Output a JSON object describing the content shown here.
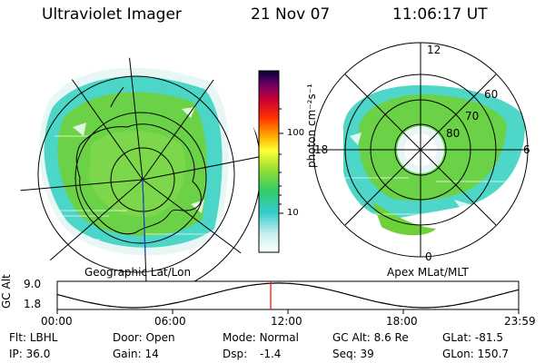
{
  "header": {
    "title": "Ultraviolet Imager",
    "date": "21 Nov 07",
    "time": "11:06:17 UT"
  },
  "colorbar": {
    "label": "photon cm⁻²s⁻¹",
    "ticks": [
      "100",
      "10"
    ]
  },
  "left_panel": {
    "caption": "Geographic Lat/Lon"
  },
  "right_panel": {
    "caption": "Apex MLat/MLT",
    "clock_labels": {
      "top": "12",
      "left": "18",
      "right": "6",
      "bottom": "0"
    },
    "lat_labels": [
      "60",
      "70",
      "80"
    ]
  },
  "timeline": {
    "ylabel": "GC Alt",
    "yticks": [
      "9.0",
      "1.8"
    ],
    "xticks": [
      "00:00",
      "06:00",
      "12:00",
      "18:00",
      "23:59"
    ],
    "marker_fraction": 0.4627
  },
  "info": {
    "flt_label": "Flt:",
    "flt_value": "LBHL",
    "ip_label": "IP:",
    "ip_value": "36.0",
    "door_label": "Door:",
    "door_value": "Open",
    "gain_label": "Gain:",
    "gain_value": "14",
    "mode_label": "Mode:",
    "mode_value": "Normal",
    "dsp_label": "Dsp:",
    "dsp_value": "-1.4",
    "gcalt_label": "GC Alt:",
    "gcalt_value": "8.6 Re",
    "seq_label": "Seq:",
    "seq_value": "39",
    "glat_label": "GLat:",
    "glat_value": "-81.5",
    "glon_label": "GLon:",
    "glon_value": "150.7"
  },
  "colors": {
    "aurora_green": "#6fd13a",
    "aurora_cyan": "#2fd0c0",
    "marker": "#ff0000"
  }
}
